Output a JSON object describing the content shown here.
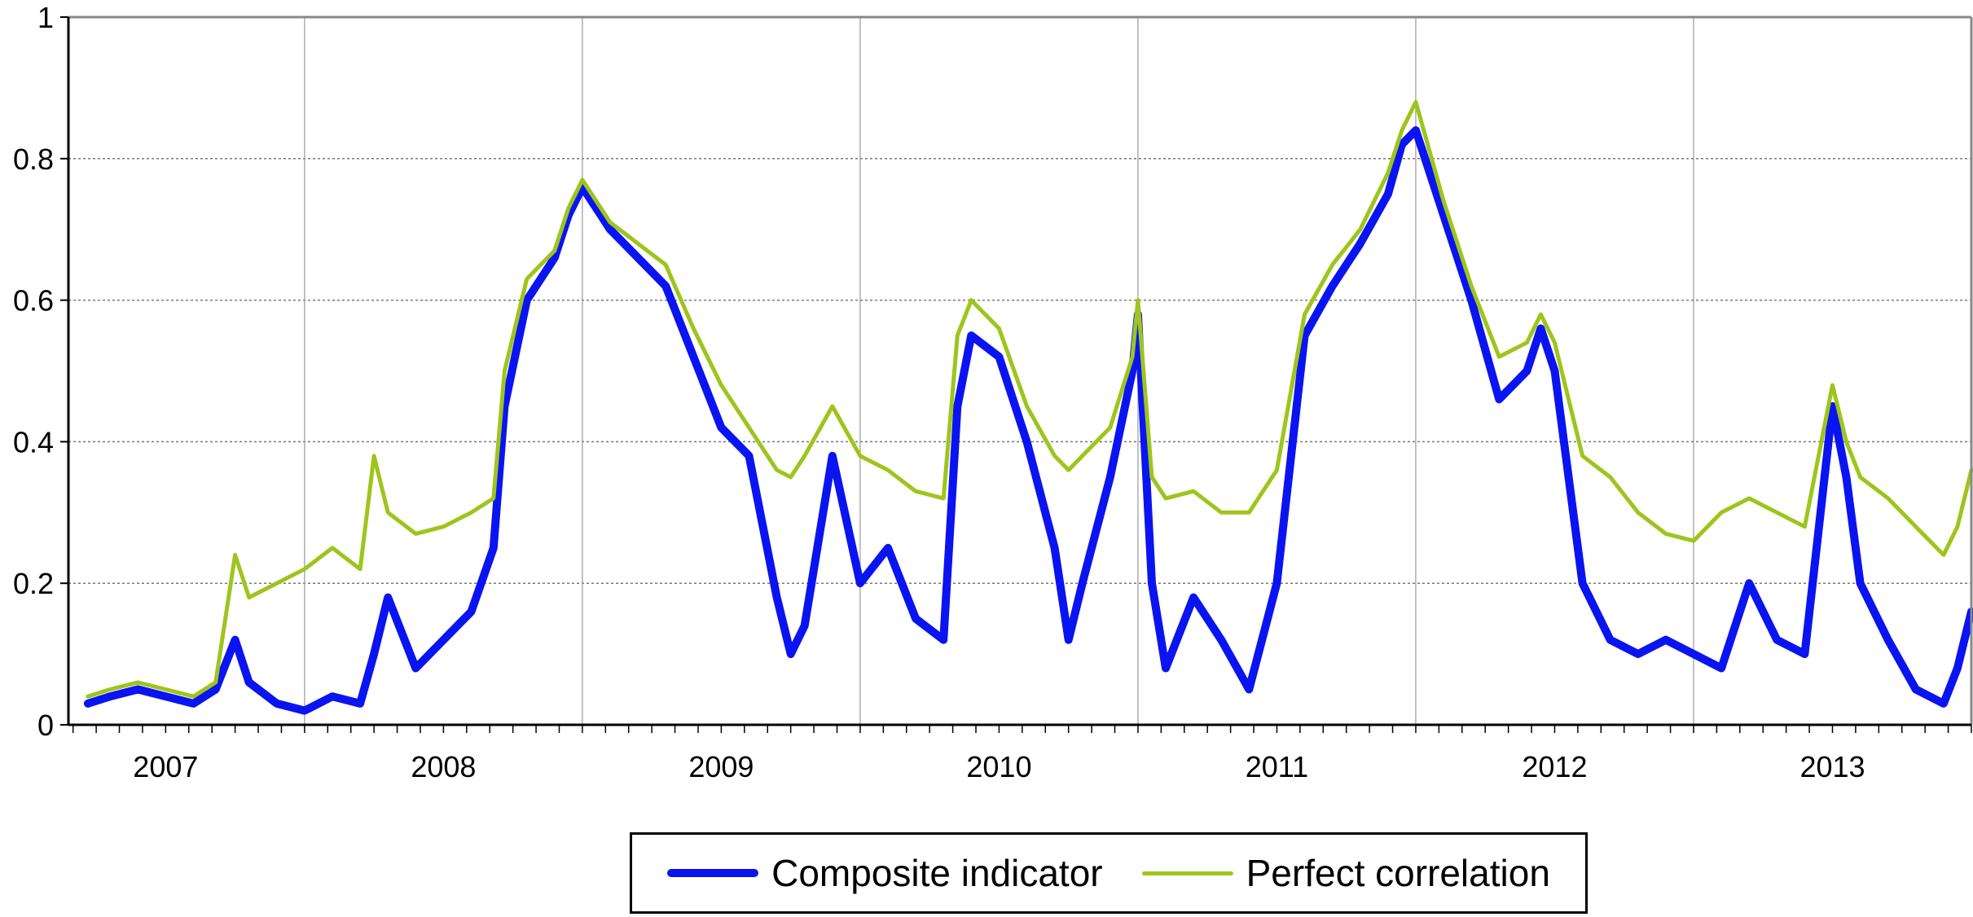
{
  "chart_data": {
    "type": "line",
    "title": "",
    "xlabel": "",
    "ylabel": "",
    "ylim": [
      0,
      1
    ],
    "xlim": [
      2006.65,
      2013.5
    ],
    "y_ticks": [
      "0",
      "0.2",
      "0.4",
      "0.6",
      "0.8",
      "1"
    ],
    "x_tick_labels": [
      "2007",
      "2008",
      "2009",
      "2010",
      "2011",
      "2012",
      "2013"
    ],
    "grid": {
      "horizontal": "dotted",
      "vertical": "solid-thin"
    },
    "legend_position": "bottom-center",
    "x": [
      2006.72,
      2006.8,
      2006.9,
      2007.0,
      2007.1,
      2007.18,
      2007.25,
      2007.3,
      2007.4,
      2007.5,
      2007.6,
      2007.7,
      2007.75,
      2007.8,
      2007.9,
      2008.0,
      2008.1,
      2008.18,
      2008.22,
      2008.3,
      2008.4,
      2008.45,
      2008.5,
      2008.6,
      2008.7,
      2008.8,
      2008.9,
      2009.0,
      2009.1,
      2009.2,
      2009.25,
      2009.3,
      2009.4,
      2009.5,
      2009.6,
      2009.7,
      2009.8,
      2009.85,
      2009.9,
      2010.0,
      2010.1,
      2010.2,
      2010.25,
      2010.3,
      2010.4,
      2010.48,
      2010.5,
      2010.55,
      2010.6,
      2010.7,
      2010.8,
      2010.9,
      2011.0,
      2011.1,
      2011.2,
      2011.3,
      2011.4,
      2011.45,
      2011.5,
      2011.6,
      2011.7,
      2011.8,
      2011.9,
      2011.95,
      2012.0,
      2012.1,
      2012.2,
      2012.3,
      2012.4,
      2012.5,
      2012.6,
      2012.7,
      2012.8,
      2012.9,
      2013.0,
      2013.05,
      2013.1,
      2013.2,
      2013.3,
      2013.4,
      2013.45,
      2013.5
    ],
    "series": [
      {
        "name": "Composite indicator",
        "color": "#0a14f0",
        "values": [
          0.03,
          0.04,
          0.05,
          0.04,
          0.03,
          0.05,
          0.12,
          0.06,
          0.03,
          0.02,
          0.04,
          0.03,
          0.1,
          0.18,
          0.08,
          0.12,
          0.16,
          0.25,
          0.45,
          0.6,
          0.66,
          0.72,
          0.76,
          0.7,
          0.66,
          0.62,
          0.52,
          0.42,
          0.38,
          0.18,
          0.1,
          0.14,
          0.38,
          0.2,
          0.25,
          0.15,
          0.12,
          0.45,
          0.55,
          0.52,
          0.4,
          0.25,
          0.12,
          0.2,
          0.35,
          0.5,
          0.58,
          0.2,
          0.08,
          0.18,
          0.12,
          0.05,
          0.2,
          0.55,
          0.62,
          0.68,
          0.75,
          0.82,
          0.84,
          0.72,
          0.6,
          0.46,
          0.5,
          0.56,
          0.5,
          0.2,
          0.12,
          0.1,
          0.12,
          0.1,
          0.08,
          0.2,
          0.12,
          0.1,
          0.45,
          0.35,
          0.2,
          0.12,
          0.05,
          0.03,
          0.08,
          0.16
        ]
      },
      {
        "name": "Perfect correlation",
        "color": "#9dc51c",
        "values": [
          0.04,
          0.05,
          0.06,
          0.05,
          0.04,
          0.06,
          0.24,
          0.18,
          0.2,
          0.22,
          0.25,
          0.22,
          0.38,
          0.3,
          0.27,
          0.28,
          0.3,
          0.32,
          0.5,
          0.63,
          0.67,
          0.73,
          0.77,
          0.71,
          0.68,
          0.65,
          0.56,
          0.48,
          0.42,
          0.36,
          0.35,
          0.38,
          0.45,
          0.38,
          0.36,
          0.33,
          0.32,
          0.55,
          0.6,
          0.56,
          0.45,
          0.38,
          0.36,
          0.38,
          0.42,
          0.52,
          0.6,
          0.35,
          0.32,
          0.33,
          0.3,
          0.3,
          0.36,
          0.58,
          0.65,
          0.7,
          0.78,
          0.84,
          0.88,
          0.74,
          0.62,
          0.52,
          0.54,
          0.58,
          0.54,
          0.38,
          0.35,
          0.3,
          0.27,
          0.26,
          0.3,
          0.32,
          0.3,
          0.28,
          0.48,
          0.4,
          0.35,
          0.32,
          0.28,
          0.24,
          0.28,
          0.36
        ]
      }
    ]
  }
}
